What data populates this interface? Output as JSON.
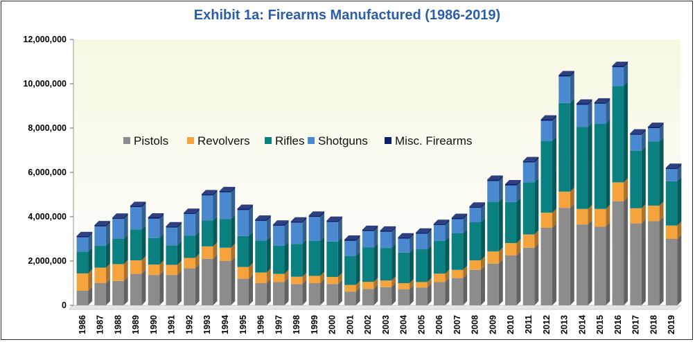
{
  "chart_data": {
    "type": "bar",
    "stacked": true,
    "title": "Exhibit 1a: Firearms Manufactured (1986-2019)",
    "xlabel": "",
    "ylabel": "",
    "ylim": [
      0,
      12000000
    ],
    "yticks": [
      0,
      2000000,
      4000000,
      6000000,
      8000000,
      10000000,
      12000000
    ],
    "ytick_labels": [
      "0",
      "2,000,000",
      "4,000,000",
      "6,000,000",
      "8,000,000",
      "10,000,000",
      "12,000,000"
    ],
    "categories": [
      "1986",
      "1987",
      "1988",
      "1989",
      "1990",
      "1991",
      "1992",
      "1993",
      "1994",
      "1995",
      "1996",
      "1997",
      "1998",
      "1999",
      "2000",
      "2001",
      "2002",
      "2003",
      "2004",
      "2005",
      "2006",
      "2007",
      "2008",
      "2009",
      "2010",
      "2011",
      "2012",
      "2013",
      "2014",
      "2015",
      "2016",
      "2017",
      "2018",
      "2019"
    ],
    "legend_position": "upper-left",
    "series": [
      {
        "name": "Pistols",
        "color": "#8c8c8c",
        "values": [
          660000,
          1000000,
          1100000,
          1420000,
          1370000,
          1370000,
          1670000,
          2100000,
          2000000,
          1200000,
          1000000,
          1050000,
          960000,
          1000000,
          960000,
          620000,
          740000,
          820000,
          720000,
          800000,
          1050000,
          1230000,
          1600000,
          1880000,
          2250000,
          2600000,
          3500000,
          4400000,
          3650000,
          3550000,
          4700000,
          3700000,
          3800000,
          3000000
        ]
      },
      {
        "name": "Revolvers",
        "color": "#f5a33d",
        "values": [
          780000,
          700000,
          760000,
          610000,
          470000,
          460000,
          470000,
          560000,
          600000,
          530000,
          480000,
          370000,
          330000,
          330000,
          320000,
          300000,
          320000,
          300000,
          280000,
          250000,
          380000,
          370000,
          430000,
          550000,
          560000,
          600000,
          680000,
          730000,
          700000,
          800000,
          850000,
          680000,
          700000,
          600000
        ]
      },
      {
        "name": "Rifles",
        "color": "#0a8081",
        "values": [
          980000,
          990000,
          1140000,
          1400000,
          1200000,
          880000,
          1000000,
          1170000,
          1300000,
          1400000,
          1450000,
          1270000,
          1480000,
          1580000,
          1600000,
          1310000,
          1550000,
          1470000,
          1380000,
          1480000,
          1480000,
          1650000,
          1720000,
          2250000,
          1850000,
          2350000,
          3250000,
          4000000,
          3700000,
          3850000,
          4350000,
          2600000,
          2900000,
          2000000
        ]
      },
      {
        "name": "Shotguns",
        "color": "#4a89cf",
        "values": [
          650000,
          870000,
          900000,
          1000000,
          870000,
          800000,
          980000,
          1130000,
          1200000,
          1170000,
          880000,
          900000,
          960000,
          1080000,
          880000,
          680000,
          740000,
          730000,
          630000,
          700000,
          710000,
          640000,
          650000,
          930000,
          750000,
          900000,
          900000,
          1200000,
          1000000,
          900000,
          850000,
          720000,
          600000,
          550000
        ]
      },
      {
        "name": "Misc. Firearms",
        "color": "#0b1f6b",
        "values": [
          60000,
          60000,
          60000,
          60000,
          60000,
          60000,
          60000,
          60000,
          60000,
          60000,
          60000,
          60000,
          60000,
          60000,
          60000,
          60000,
          60000,
          60000,
          60000,
          60000,
          60000,
          60000,
          60000,
          60000,
          60000,
          60000,
          60000,
          60000,
          60000,
          60000,
          60000,
          60000,
          60000,
          60000
        ]
      }
    ]
  }
}
